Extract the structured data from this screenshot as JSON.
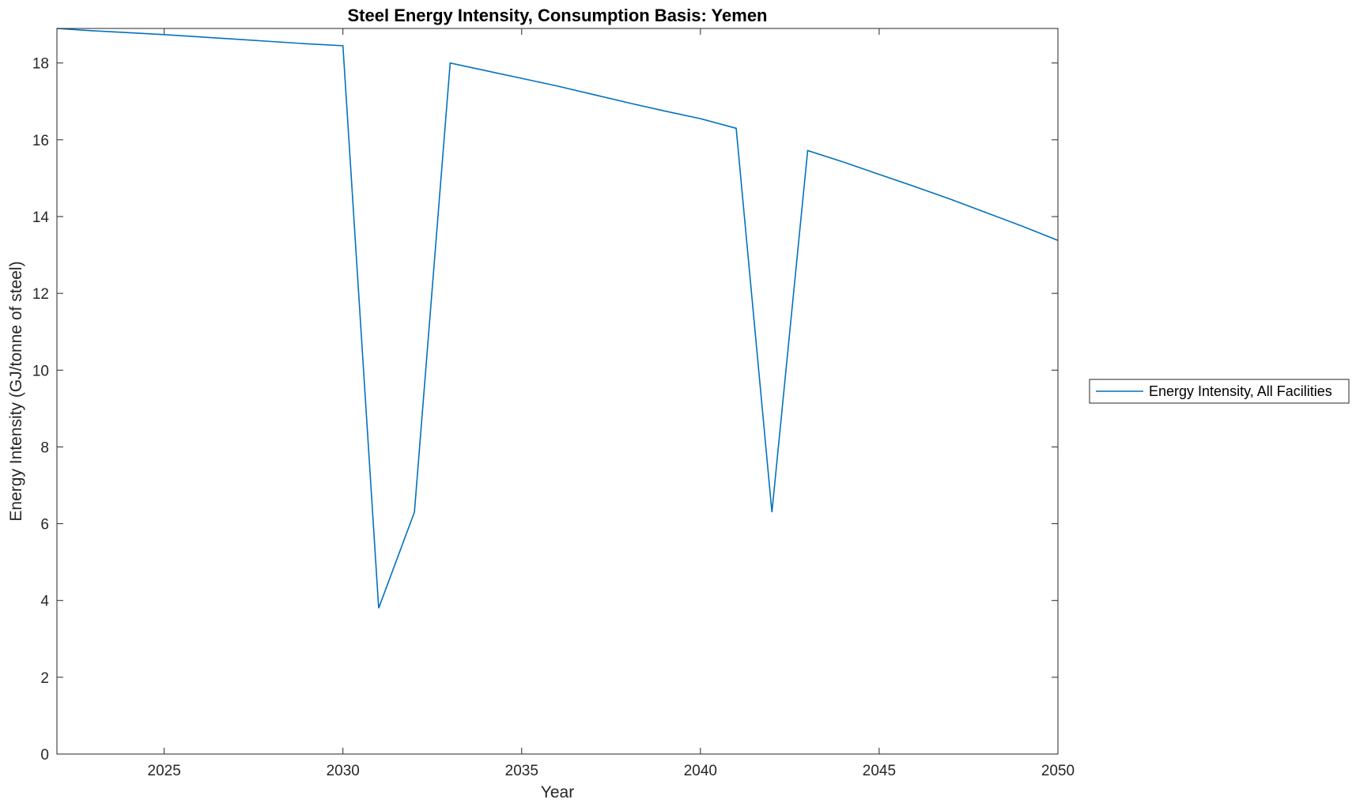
{
  "chart_data": {
    "type": "line",
    "title": "Steel Energy Intensity, Consumption Basis: Yemen",
    "xlabel": "Year",
    "ylabel": "Energy Intensity (GJ/tonne of steel)",
    "xlim": [
      2022,
      2050
    ],
    "ylim": [
      0,
      18.9
    ],
    "xticks": [
      2025,
      2030,
      2035,
      2040,
      2045,
      2050
    ],
    "yticks": [
      0,
      2,
      4,
      6,
      8,
      10,
      12,
      14,
      16,
      18
    ],
    "grid": false,
    "legend_position": "outside-right",
    "series": [
      {
        "name": "Energy Intensity, All Facilities",
        "color": "#0072BD",
        "x": [
          2022,
          2023,
          2024,
          2025,
          2026,
          2027,
          2028,
          2029,
          2030,
          2031,
          2032,
          2033,
          2034,
          2035,
          2036,
          2037,
          2038,
          2039,
          2040,
          2041,
          2042,
          2043,
          2044,
          2045,
          2046,
          2047,
          2048,
          2049,
          2050
        ],
        "y": [
          18.9,
          18.84,
          18.79,
          18.74,
          18.68,
          18.62,
          18.56,
          18.5,
          18.45,
          3.8,
          6.3,
          18.0,
          17.8,
          17.6,
          17.4,
          17.18,
          16.96,
          16.75,
          16.55,
          16.3,
          6.3,
          15.72,
          15.42,
          15.1,
          14.78,
          14.45,
          14.1,
          13.75,
          13.38
        ]
      }
    ]
  }
}
